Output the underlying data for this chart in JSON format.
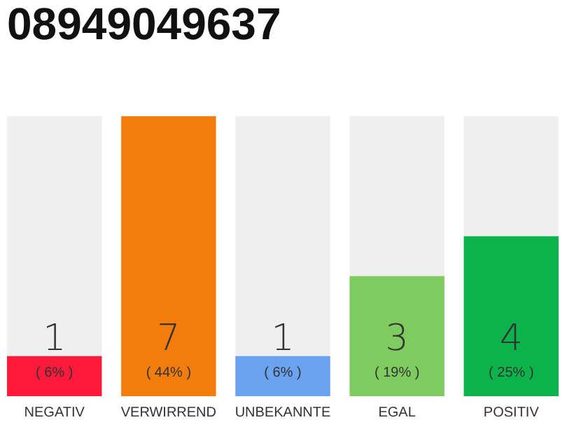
{
  "chart_data": {
    "type": "bar",
    "title": "08949049637",
    "categories": [
      "NEGATIV",
      "VERWIRREND",
      "UNBEKANNTE",
      "EGAL",
      "POSITIV"
    ],
    "values": [
      1,
      7,
      1,
      3,
      4
    ],
    "colors": [
      "#ff1a3c",
      "#f27c0c",
      "#6aa3f0",
      "#7ecb5f",
      "#0cb34a"
    ],
    "data_labels": true,
    "bands": [
      {
        "axis": "x",
        "from": "NEGATIV",
        "to": "NEGATIV",
        "color": "#efefef"
      },
      {
        "axis": "x",
        "from": "UNBEKANNTE",
        "to": "UNBEKANNTE",
        "color": "#efefef"
      },
      {
        "axis": "x",
        "from": "EGAL",
        "to": "EGAL",
        "color": "#efefef"
      },
      {
        "axis": "x",
        "from": "POSITIV",
        "to": "POSITIV",
        "color": "#efefef"
      }
    ],
    "annotations": [
      "( 6% )",
      "( 44% )",
      "( 6% )",
      "( 19% )",
      "( 25% )"
    ]
  }
}
